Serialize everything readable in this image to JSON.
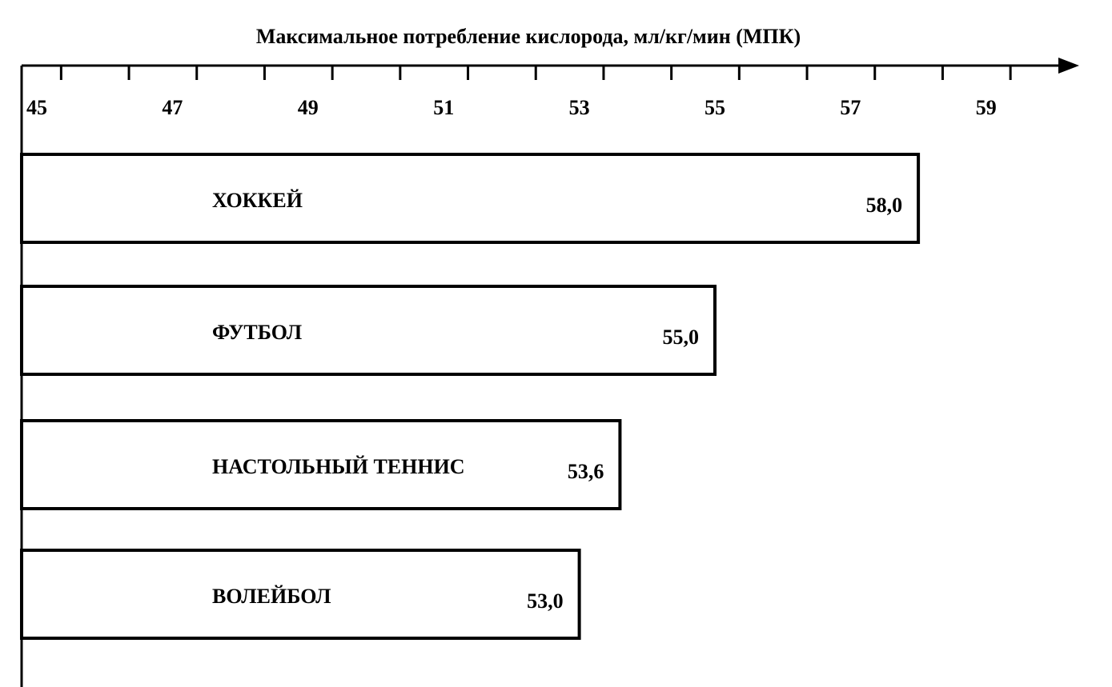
{
  "chart_data": {
    "type": "bar",
    "orientation": "horizontal",
    "title": "Максимальное потребление кислорода, мл/кг/мин (МПК)",
    "categories": [
      "ХОККЕЙ",
      "ФУТБОЛ",
      "НАСТОЛЬНЫЙ ТЕННИС",
      "ВОЛЕЙБОЛ"
    ],
    "values": [
      58.0,
      55.0,
      53.6,
      53.0
    ],
    "value_labels": [
      "58,0",
      "55,0",
      "53,6",
      "53,0"
    ],
    "tick_labels": [
      "45",
      "47",
      "49",
      "51",
      "53",
      "55",
      "57",
      "59"
    ],
    "xlim": [
      44.5,
      60.5
    ],
    "grid": false,
    "bar_fill": "#ffffff",
    "bar_stroke": "#000000"
  }
}
